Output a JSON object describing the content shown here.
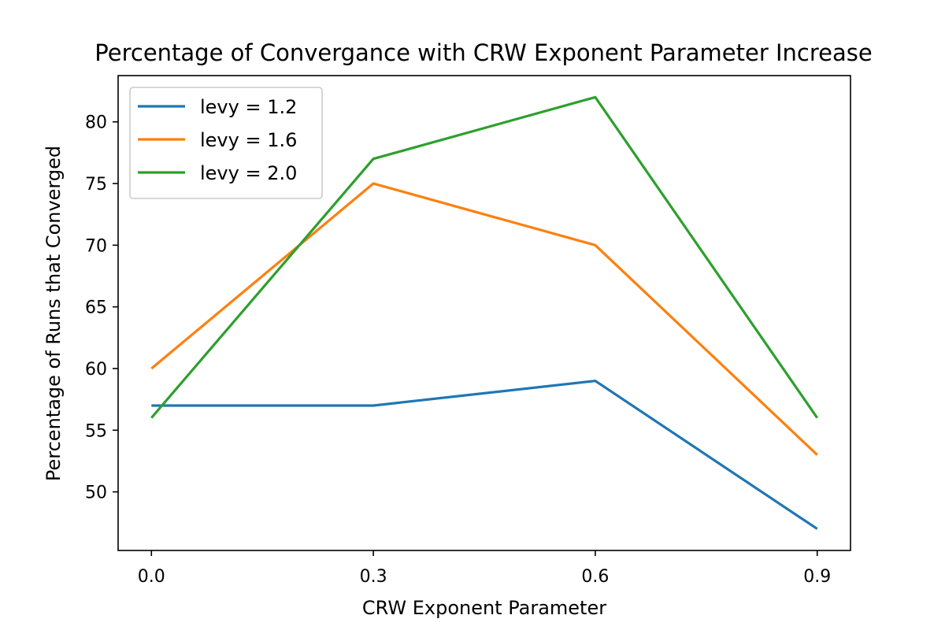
{
  "chart_data": {
    "type": "line",
    "title": "Percentage of Convergance with CRW Exponent Parameter Increase",
    "xlabel": "CRW Exponent Parameter",
    "ylabel": "Percentage of Runs that Converged",
    "x": [
      0.0,
      0.3,
      0.6,
      0.9
    ],
    "x_tick_labels": [
      "0.0",
      "0.3",
      "0.6",
      "0.9"
    ],
    "y_ticks": [
      50,
      55,
      60,
      65,
      70,
      75,
      80
    ],
    "y_tick_labels": [
      "50",
      "55",
      "60",
      "65",
      "70",
      "75",
      "80"
    ],
    "xlim": [
      -0.045,
      0.945
    ],
    "ylim": [
      45.25,
      83.75
    ],
    "grid": false,
    "legend_position": "top-left",
    "series": [
      {
        "name": "levy = 1.2",
        "color": "#1f77b4",
        "values": [
          57,
          57,
          59,
          47
        ]
      },
      {
        "name": "levy = 1.6",
        "color": "#ff7f0e",
        "values": [
          60,
          75,
          70,
          53
        ]
      },
      {
        "name": "levy = 2.0",
        "color": "#2ca02c",
        "values": [
          56,
          77,
          82,
          56
        ]
      }
    ]
  }
}
